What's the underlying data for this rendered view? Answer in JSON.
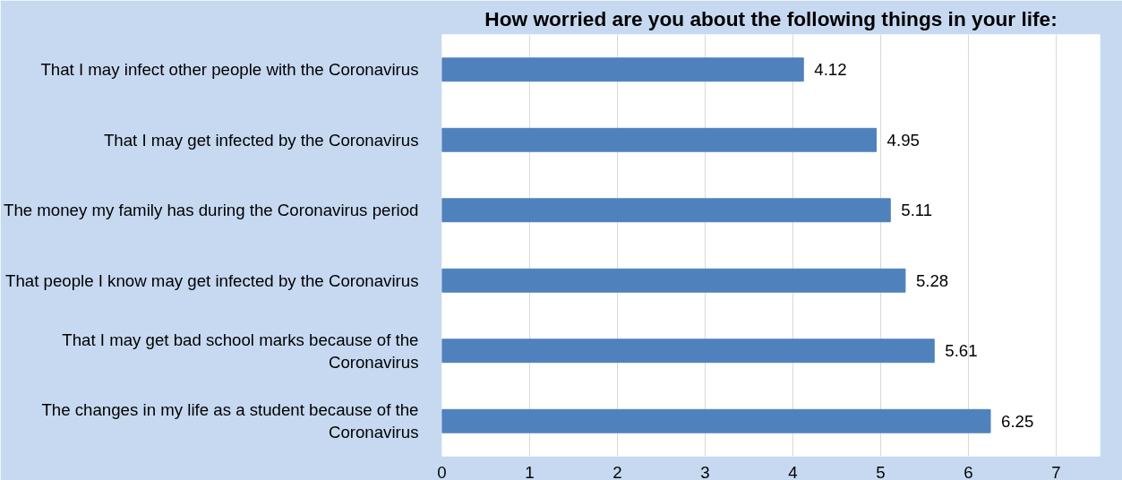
{
  "chart_data": {
    "type": "bar",
    "orientation": "horizontal",
    "title": "How worried are you about the following things in your life:",
    "categories": [
      "That I may infect other people with the Coronavirus",
      "That I may get infected by the Coronavirus",
      "The money my family has during the Coronavirus period",
      "That people I know may get infected by the Coronavirus",
      "That I may get bad school marks because of the\nCoronavirus",
      "The changes in my life as a student because of the\nCoronavirus"
    ],
    "values": [
      4.12,
      4.95,
      5.11,
      5.28,
      5.61,
      6.25
    ],
    "color": "#4f81bd",
    "data_labels": true,
    "xlim": [
      0,
      7.5
    ],
    "xticks": [
      0,
      1,
      2,
      3,
      4,
      5,
      6,
      7
    ],
    "grid": "x"
  }
}
